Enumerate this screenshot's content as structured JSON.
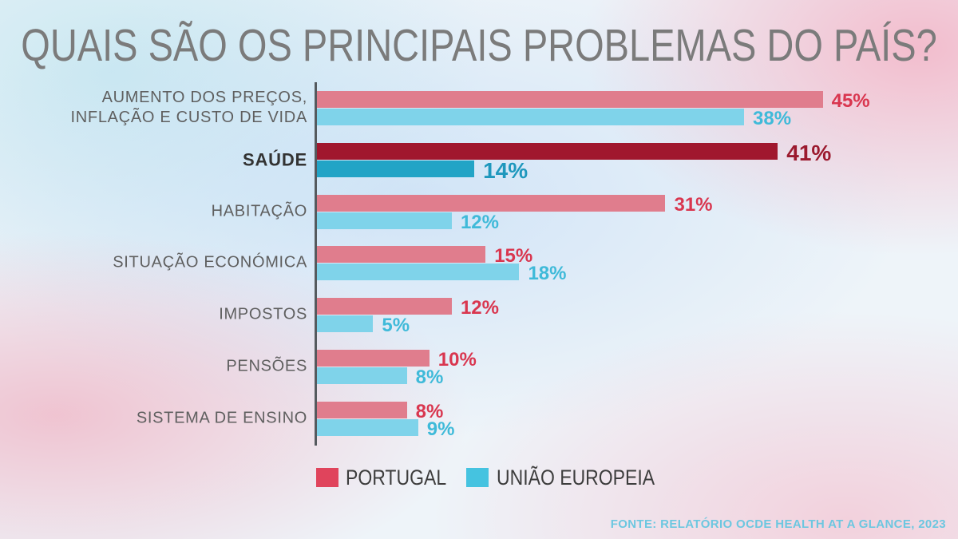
{
  "chart_data": {
    "type": "bar",
    "orientation": "horizontal",
    "title": "QUAIS SÃO OS PRINCIPAIS PROBLEMAS DO PAÍS?",
    "categories": [
      "AUMENTO DOS PREÇOS,\nINFLAÇÃO E CUSTO DE VIDA",
      "SAÚDE",
      "HABITAÇÃO",
      "SITUAÇÃO ECONÓMICA",
      "IMPOSTOS",
      "PENSÕES",
      "SISTEMA DE ENSINO"
    ],
    "series": [
      {
        "name": "PORTUGAL",
        "values": [
          45,
          41,
          31,
          15,
          12,
          10,
          8
        ],
        "labels": [
          "45%",
          "41%",
          "31%",
          "15%",
          "12%",
          "10%",
          "8%"
        ],
        "color": "#e07d8d",
        "label_color": "#d9364f",
        "highlight_color": "#a0172e",
        "highlight_label_color": "#9b1a2e",
        "legend_color": "#e0445c"
      },
      {
        "name": "UNIÃO EUROPEIA",
        "values": [
          38,
          14,
          12,
          18,
          5,
          8,
          9
        ],
        "labels": [
          "38%",
          "14%",
          "12%",
          "18%",
          "5%",
          "8%",
          "9%"
        ],
        "color": "#7fd3ea",
        "label_color": "#3fbad9",
        "highlight_color": "#22a4c6",
        "highlight_label_color": "#1f98bd",
        "legend_color": "#45c3e0"
      }
    ],
    "highlight": "SAÚDE",
    "xlim": [
      0,
      50
    ],
    "grid": false,
    "legend": "bottom"
  },
  "source": "FONTE: RELATÓRIO OCDE HEALTH AT A GLANCE, 2023"
}
